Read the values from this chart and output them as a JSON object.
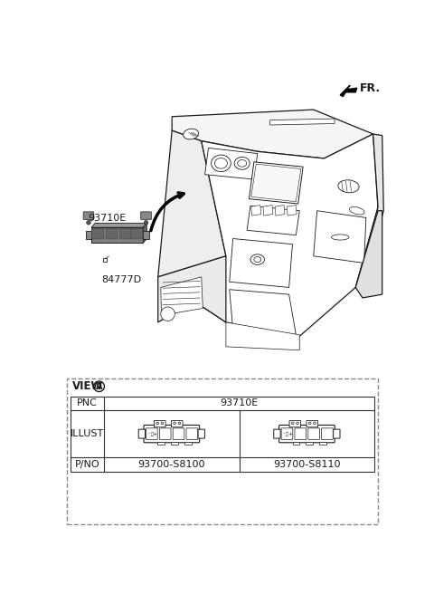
{
  "bg_color": "#ffffff",
  "fig_width": 4.8,
  "fig_height": 6.56,
  "dpi": 100,
  "fr_label": "FR.",
  "part_label_1": "93710E",
  "part_label_2": "84777D",
  "view_label": "VIEW",
  "view_circle": "A",
  "pnc_label": "PNC",
  "pnc_value": "93710E",
  "illust_label": "ILLUST",
  "pno_label": "P/NO",
  "pno_1": "93700-S8100",
  "pno_2": "93700-S8110",
  "lc": "#1a1a1a",
  "lc_light": "#555555",
  "dashed_color": "#888888",
  "table_border": "#333333",
  "switch_fill": "#888888",
  "switch_dark": "#555555"
}
